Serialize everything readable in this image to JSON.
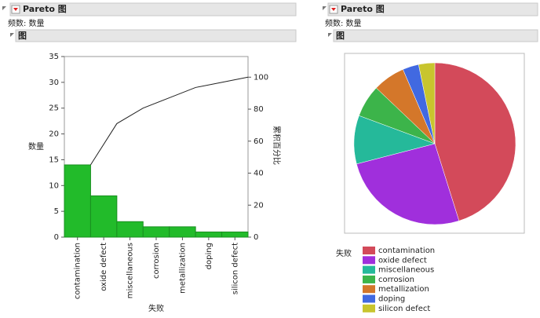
{
  "panels": [
    {
      "title": "Pareto 图",
      "freq_label": "频数: 数量",
      "section": "图"
    },
    {
      "title": "Pareto 图",
      "freq_label": "频数: 数量",
      "section": "图"
    }
  ],
  "chart_data": [
    {
      "type": "pareto",
      "categories": [
        "contamination",
        "oxide defect",
        "miscellaneous",
        "corrosion",
        "metallization",
        "doping",
        "silicon defect"
      ],
      "values": [
        14,
        8,
        3,
        2,
        2,
        1,
        1
      ],
      "color": "#22bb2a",
      "cumulative": {
        "values": [
          45.16,
          70.97,
          80.65,
          87.1,
          93.55,
          96.77,
          100
        ],
        "axis": "y2",
        "color": "#222222"
      },
      "xlabel": "失败",
      "ylabel": "数量",
      "y2label": "累积百分比",
      "ylim": [
        0,
        35
      ],
      "yticks": [
        0,
        5,
        10,
        15,
        20,
        25,
        30,
        35
      ],
      "y2lim": [
        0,
        112.9
      ],
      "y2ticks": [
        0,
        20,
        40,
        60,
        80,
        100
      ],
      "grid": false
    },
    {
      "type": "pie",
      "categories": [
        "contamination",
        "oxide defect",
        "miscellaneous",
        "corrosion",
        "metallization",
        "doping",
        "silicon defect"
      ],
      "values": [
        14,
        8,
        3,
        2,
        2,
        1,
        1
      ],
      "colors": [
        "#d34a5a",
        "#a02fdc",
        "#25b99a",
        "#3cb44a",
        "#d4772a",
        "#4169e1",
        "#c8c52e"
      ],
      "legend_title": "失败",
      "legend": "bottom-left"
    }
  ]
}
